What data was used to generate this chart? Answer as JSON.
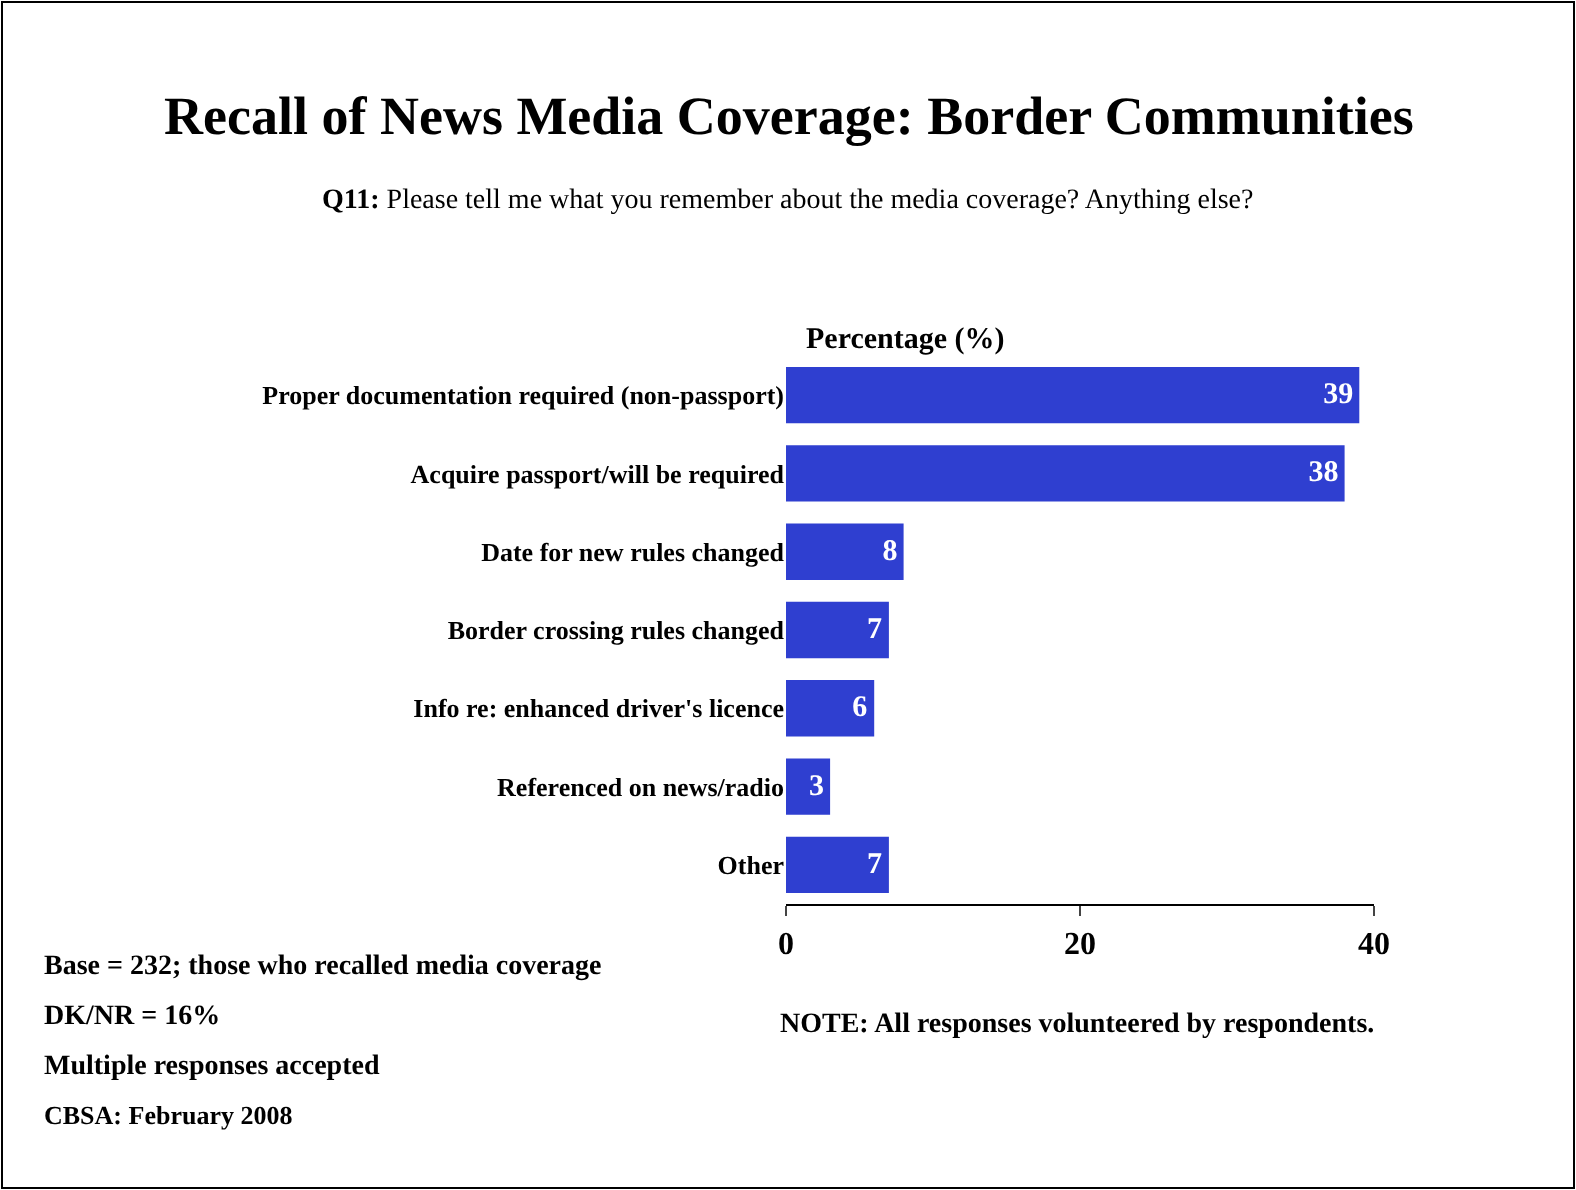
{
  "chart_data": {
    "type": "bar",
    "orientation": "horizontal",
    "title": "Recall of News Media Coverage: Border Communities",
    "subtitle": "Q11: Please tell me what you remember about the media coverage? Anything else?",
    "xlabel": "Percentage (%)",
    "categories": [
      "Proper documentation required (non-passport)",
      "Acquire passport/will be required",
      "Date for new rules changed",
      "Border crossing rules changed",
      "Info re: enhanced driver's licence",
      "Referenced on news/radio",
      "Other"
    ],
    "values": [
      39,
      38,
      8,
      7,
      6,
      3,
      7
    ],
    "color": "#2f3fd0",
    "data_labels": true,
    "xlim": [
      0,
      40
    ],
    "xticks": [
      0,
      20,
      40
    ],
    "grid": false,
    "legend": false,
    "annotations": [
      "Base = 232; those who recalled media coverage",
      "DK/NR = 16%",
      "Multiple responses accepted",
      "CBSA: February 2008",
      "NOTE: All responses volunteered by respondents."
    ]
  }
}
